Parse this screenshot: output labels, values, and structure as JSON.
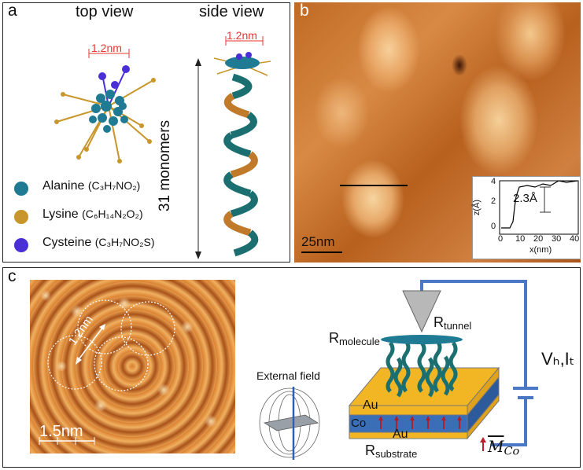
{
  "panel_a": {
    "label": "a",
    "top_view_title": "top view",
    "side_view_title": "side view",
    "top_width_label": "1.2nm",
    "side_width_label": "1.2nm",
    "length_label": "31 monomers",
    "legend": [
      {
        "name": "Alanine",
        "formula": "(C₃H₇NO₂)",
        "color": "#1f7a94"
      },
      {
        "name": "Lysine",
        "formula": "(C₆H₁₄N₂O₂)",
        "color": "#c8962a"
      },
      {
        "name": "Cysteine",
        "formula": "(C₃H₇NO₂S)",
        "color": "#4a2fd6"
      }
    ]
  },
  "panel_b": {
    "label": "b",
    "scale_bar": "25nm",
    "inset": {
      "ylabel": "z(Å)",
      "xlabel": "x(nm)",
      "annotation": "2.3Å",
      "y_ticks": [
        "0",
        "2",
        "4"
      ],
      "x_ticks": [
        "0",
        "10",
        "20",
        "30",
        "40"
      ]
    }
  },
  "panel_c": {
    "label": "c",
    "distance_label": "1.2nm",
    "scale_bar": "1.5nm",
    "external_field_label": "External field",
    "r_molecule": "molecule",
    "r_tunnel": "tunnel",
    "r_substrate": "substrate",
    "r_symbol": "R",
    "au_top": "Au",
    "co_label": "Co",
    "au_bottom": "Au",
    "vb_it": "Vₕ,Iₜ",
    "magnetization": "M",
    "magnetization_sub": "Co"
  },
  "colors": {
    "stm_dark": "#8a3d0c",
    "stm_light": "#f3c98a",
    "au": "#f2b625",
    "co": "#3a6fb8",
    "wire": "#4a78c4",
    "helix_teal": "#1c6f70",
    "helix_orange": "#c07a2a"
  }
}
